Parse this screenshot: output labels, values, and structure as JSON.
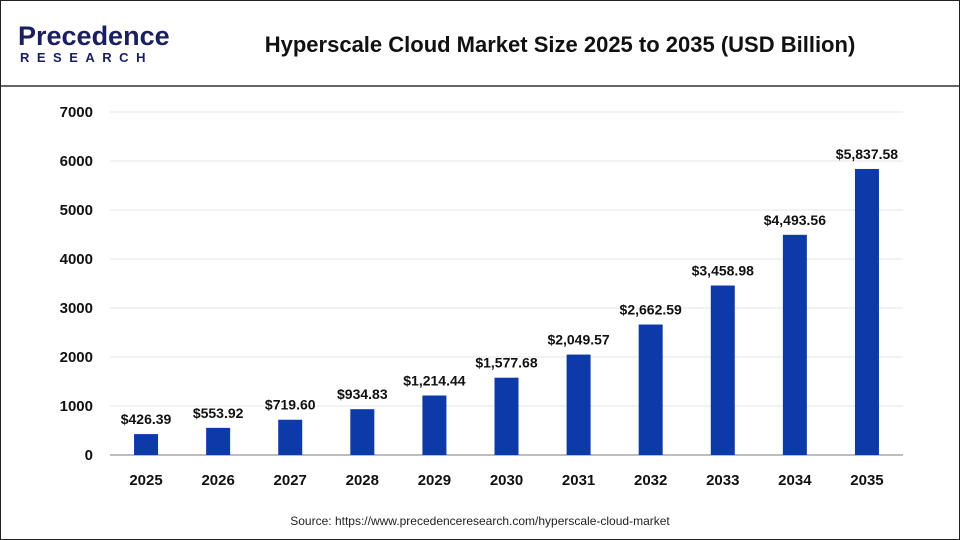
{
  "logo": {
    "line1": "Precedence",
    "line2": "RESEARCH"
  },
  "colors": {
    "bar": "#0d3aa9",
    "logo_dark": "#1b1f5e",
    "logo_blue": "#2a6fd6",
    "grid": "#e6e6e6",
    "axis": "#bdbdbd"
  },
  "chart_data": {
    "type": "bar",
    "title": "Hyperscale Cloud Market Size 2025 to 2035 (USD Billion)",
    "categories": [
      "2025",
      "2026",
      "2027",
      "2028",
      "2029",
      "2030",
      "2031",
      "2032",
      "2033",
      "2034",
      "2035"
    ],
    "values": [
      426.39,
      553.92,
      719.6,
      934.83,
      1214.44,
      1577.68,
      2049.57,
      2662.59,
      3458.98,
      4493.56,
      5837.58
    ],
    "data_labels": [
      "$426.39",
      "$553.92",
      "$719.60",
      "$934.83",
      "$1,214.44",
      "$1,577.68",
      "$2,049.57",
      "$2,662.59",
      "$3,458.98",
      "$4,493.56",
      "$5,837.58"
    ],
    "ylim": [
      0,
      7000
    ],
    "yticks": [
      "0",
      "1000",
      "2000",
      "3000",
      "4000",
      "5000",
      "6000",
      "7000"
    ],
    "xlabel": "",
    "ylabel": "",
    "grid": true,
    "legend": "none"
  },
  "source": "Source: https://www.precedenceresearch.com/hyperscale-cloud-market"
}
